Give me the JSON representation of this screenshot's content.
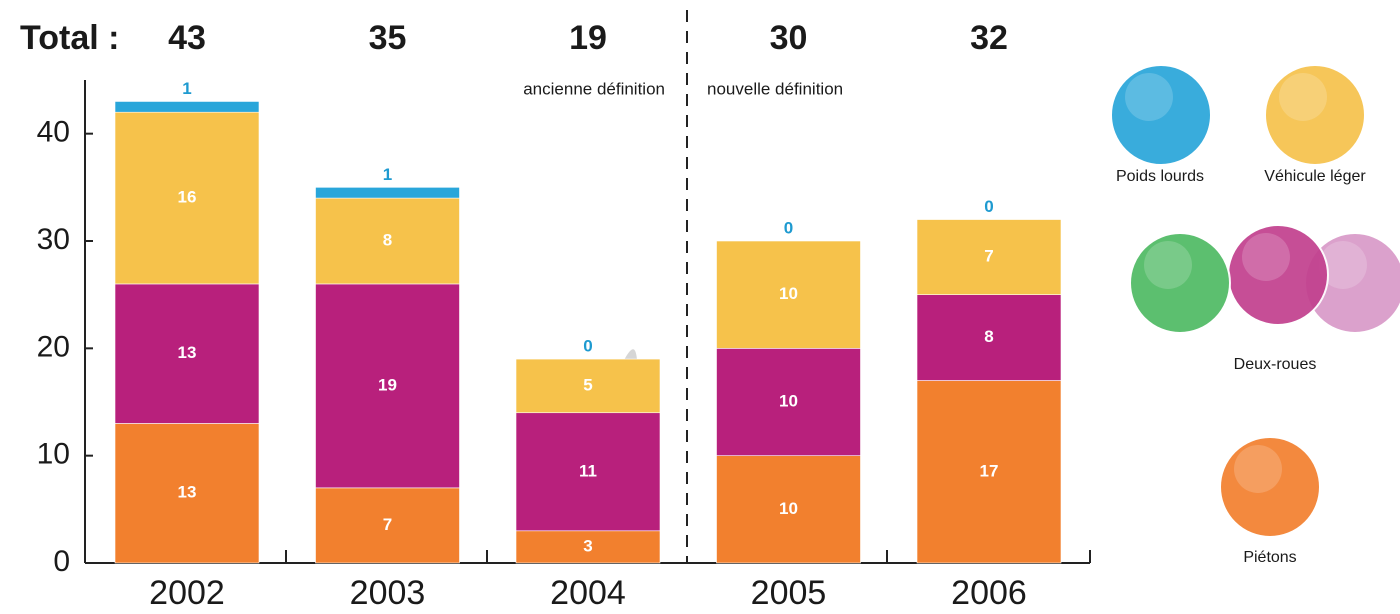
{
  "chart_data": {
    "type": "stacked_bar",
    "totals_label": "Total :",
    "totals": [
      43,
      35,
      19,
      30,
      32
    ],
    "annotations": [
      "ancienne définition",
      "nouvelle définition"
    ],
    "categories": [
      "2002",
      "2003",
      "2004",
      "2005",
      "2006"
    ],
    "series": [
      {
        "name": "Piétons",
        "color": "#f2802e",
        "values": [
          13,
          7,
          3,
          10,
          17
        ]
      },
      {
        "name": "Deux-roues",
        "color": "#b8207c",
        "values": [
          13,
          19,
          11,
          10,
          8
        ]
      },
      {
        "name": "Véhicule léger",
        "color": "#f6c24b",
        "values": [
          16,
          8,
          5,
          10,
          7
        ]
      },
      {
        "name": "Poids lourds",
        "color": "#29a6da",
        "values": [
          1,
          1,
          0,
          0,
          0
        ]
      }
    ],
    "ylim": [
      0,
      45
    ],
    "yticks": [
      0,
      10,
      20,
      30,
      40
    ]
  }
}
